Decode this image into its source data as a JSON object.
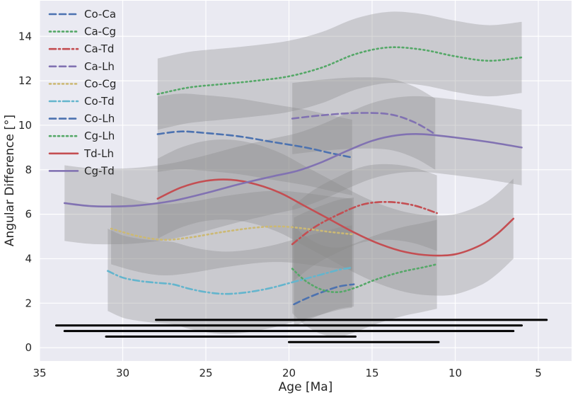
{
  "chart_data": {
    "type": "line",
    "title": "",
    "xlabel": "Age [Ma]",
    "ylabel": "Angular Difference [°]",
    "xlim": [
      35,
      3
    ],
    "ylim": [
      -0.6,
      15.6
    ],
    "xticks": [
      35,
      30,
      25,
      20,
      15,
      10,
      5
    ],
    "yticks": [
      0,
      2,
      4,
      6,
      8,
      10,
      12,
      14
    ],
    "grid": true,
    "legend_position": "top-left",
    "background": "#eaeaf2",
    "series": [
      {
        "name": "Co-Ca",
        "color": "#4c72b0",
        "dash": "dashed",
        "x": [
          19.7,
          19,
          18,
          17,
          16.1
        ],
        "y": [
          1.95,
          2.2,
          2.5,
          2.75,
          2.85
        ],
        "band": [
          1.0,
          3.9
        ]
      },
      {
        "name": "Ca-Cg",
        "color": "#55a868",
        "dash": "dotted",
        "x": [
          27.9,
          26,
          24,
          22,
          20,
          18,
          16,
          14,
          12,
          10,
          8,
          6
        ],
        "y": [
          11.4,
          11.7,
          11.85,
          12.0,
          12.2,
          12.6,
          13.2,
          13.5,
          13.4,
          13.1,
          12.9,
          13.05
        ],
        "band": [
          1.6,
          1.6
        ]
      },
      {
        "name": "Ca-Td",
        "color": "#c44e52",
        "dash": "dashdot",
        "x": [
          19.8,
          18.5,
          17,
          15.5,
          14,
          12.5,
          11.1
        ],
        "y": [
          4.65,
          5.4,
          6.0,
          6.45,
          6.55,
          6.4,
          6.05
        ],
        "band": [
          1.7,
          1.7
        ]
      },
      {
        "name": "Ca-Lh",
        "color": "#8172b2",
        "dash": "dashed",
        "x": [
          19.8,
          18,
          16,
          14,
          12.5,
          11.2
        ],
        "y": [
          10.3,
          10.45,
          10.55,
          10.5,
          10.15,
          9.6
        ],
        "band": [
          1.6,
          1.6
        ]
      },
      {
        "name": "Co-Cg",
        "color": "#ccb974",
        "dash": "dotted",
        "x": [
          30.7,
          29,
          27.5,
          26,
          24,
          22,
          20.5,
          19,
          17.5,
          16.2
        ],
        "y": [
          5.35,
          5.0,
          4.85,
          4.95,
          5.2,
          5.4,
          5.45,
          5.35,
          5.2,
          5.1
        ],
        "band": [
          1.6,
          1.6
        ]
      },
      {
        "name": "Co-Td",
        "color": "#64b5cd",
        "dash": "dashdot",
        "x": [
          30.9,
          30,
          29,
          28,
          27,
          26,
          25,
          24,
          23,
          22,
          21,
          20,
          19,
          18,
          17,
          16.2
        ],
        "y": [
          3.45,
          3.15,
          3.0,
          2.92,
          2.85,
          2.65,
          2.5,
          2.42,
          2.45,
          2.55,
          2.7,
          2.9,
          3.1,
          3.3,
          3.5,
          3.6
        ],
        "band": [
          1.8,
          1.9
        ]
      },
      {
        "name": "Co-Lh",
        "color": "#4c72b0",
        "dash": "dashed",
        "x": [
          27.9,
          26.5,
          25,
          23,
          21,
          19,
          17.5,
          16.2
        ],
        "y": [
          9.6,
          9.72,
          9.65,
          9.5,
          9.25,
          9.0,
          8.75,
          8.55
        ],
        "band": [
          1.7,
          1.7
        ]
      },
      {
        "name": "Cg-Lh",
        "color": "#55a868",
        "dash": "dotted",
        "x": [
          19.8,
          19,
          18,
          17,
          16,
          15,
          14,
          13,
          12,
          11.1
        ],
        "y": [
          3.55,
          3.0,
          2.6,
          2.5,
          2.7,
          3.0,
          3.25,
          3.45,
          3.6,
          3.75
        ],
        "band": [
          2.0,
          2.0
        ]
      },
      {
        "name": "Td-Lh",
        "color": "#c44e52",
        "dash": "solid",
        "x": [
          27.9,
          26.5,
          25,
          23.5,
          22,
          20.5,
          19,
          17.5,
          16,
          14.5,
          13,
          11.5,
          10,
          8.5,
          7.5,
          6.5
        ],
        "y": [
          6.7,
          7.2,
          7.5,
          7.55,
          7.35,
          6.95,
          6.35,
          5.75,
          5.15,
          4.65,
          4.3,
          4.15,
          4.2,
          4.6,
          5.1,
          5.8
        ],
        "band": [
          1.8,
          1.8
        ]
      },
      {
        "name": "Cg-Td",
        "color": "#8172b2",
        "dash": "solid",
        "x": [
          33.5,
          32,
          30.5,
          29,
          27,
          25,
          23,
          21,
          19.5,
          18,
          16.5,
          15,
          13.5,
          12,
          10,
          8,
          6
        ],
        "y": [
          6.5,
          6.37,
          6.35,
          6.4,
          6.6,
          6.95,
          7.35,
          7.7,
          7.95,
          8.35,
          8.85,
          9.3,
          9.55,
          9.6,
          9.45,
          9.25,
          9.0
        ],
        "band": [
          1.7,
          1.7
        ]
      }
    ],
    "ranges": [
      {
        "start": 28.0,
        "end": 4.5,
        "y": 1.25
      },
      {
        "start": 34.0,
        "end": 6.0,
        "y": 1.0
      },
      {
        "start": 33.5,
        "end": 6.5,
        "y": 0.75
      },
      {
        "start": 31.0,
        "end": 16.0,
        "y": 0.5
      },
      {
        "start": 20.0,
        "end": 11.0,
        "y": 0.25
      }
    ]
  }
}
